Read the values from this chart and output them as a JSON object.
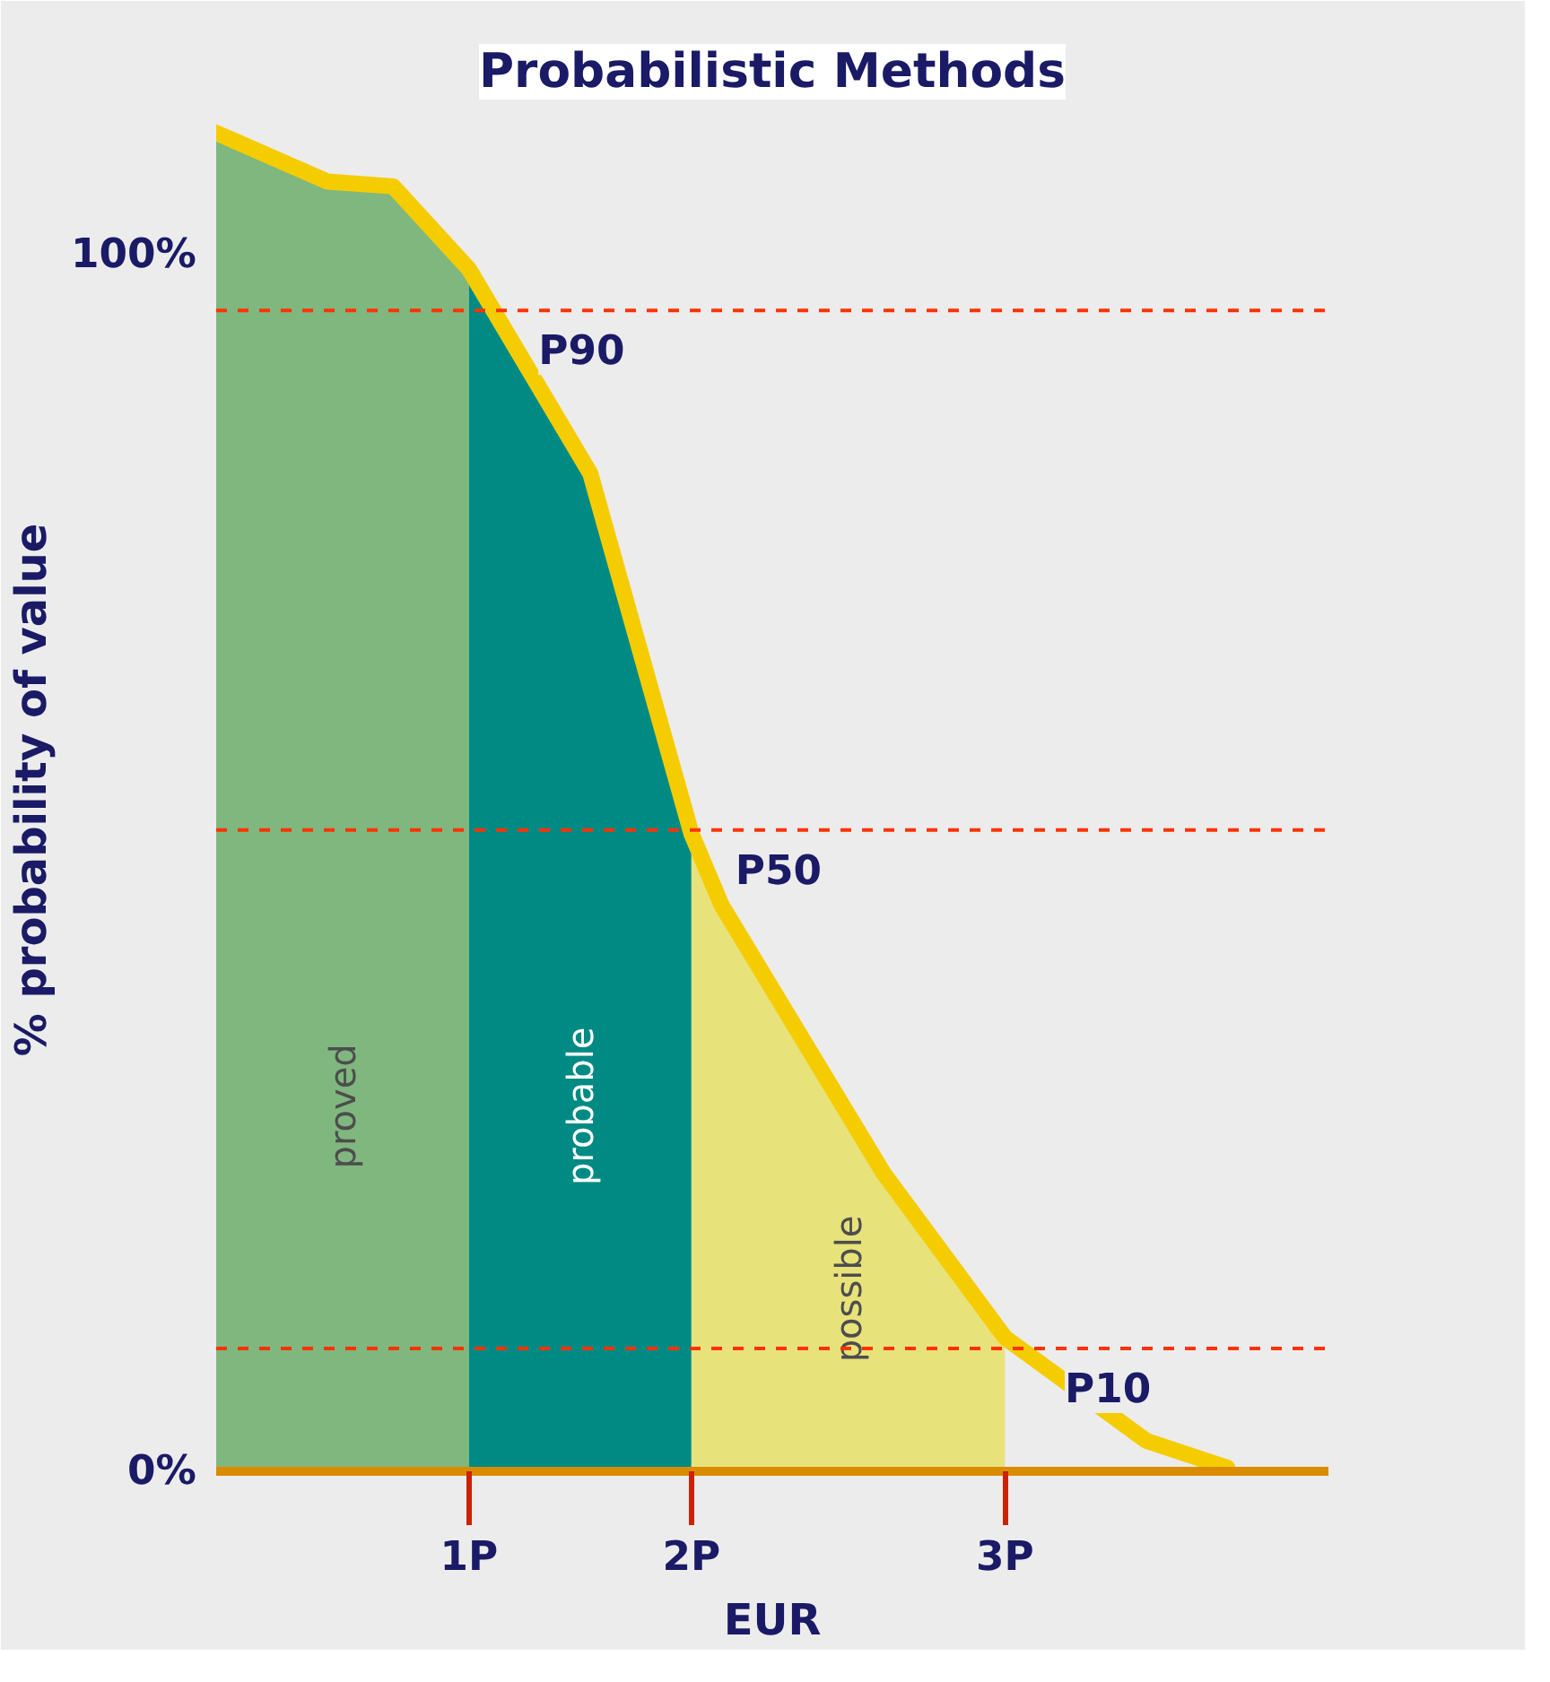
{
  "chart_data": {
    "type": "area",
    "title": "Probabilistic Methods",
    "ylabel": "% probability of value",
    "xlabel": "EUR",
    "series": [
      {
        "name": "proved",
        "color": "#7fb77e",
        "x": [
          0,
          0.44,
          0.7,
          1.0
        ],
        "values": [
          110,
          106,
          105.6,
          98.8
        ]
      },
      {
        "name": "probable",
        "color": "#008a84",
        "x": [
          1.0,
          1.48,
          1.88
        ],
        "values": [
          98.8,
          82,
          52.4
        ]
      },
      {
        "name": "possible",
        "color": "#e8e27a",
        "x": [
          1.88,
          2.0,
          2.64,
          3.12
        ],
        "values": [
          52.4,
          46.5,
          24.5,
          11
        ]
      },
      {
        "type": "line",
        "color": "#f5cc00",
        "x": [
          0,
          0.44,
          0.7,
          1.0,
          1.48,
          1.88,
          2.0,
          2.64,
          3.12,
          3.68,
          4.0
        ],
        "values": [
          110,
          106,
          105.6,
          98.8,
          82,
          52.4,
          46.5,
          24.5,
          11,
          2.5,
          0.3
        ]
      }
    ],
    "ref_lines": [
      {
        "axis": "y",
        "value": 95.4,
        "label": "P90",
        "color": "#ff3300",
        "line_style": "dashed"
      },
      {
        "axis": "y",
        "value": 52.7,
        "label": "P50",
        "color": "#ff3300",
        "line_style": "dashed"
      },
      {
        "axis": "y",
        "value": 10.1,
        "label": "P10",
        "color": "#ff3300",
        "line_style": "dashed"
      }
    ],
    "xlim": [
      0,
      4.4
    ],
    "ylim": [
      0,
      112
    ],
    "xticks": [
      {
        "value": 1.0,
        "label": "1P"
      },
      {
        "value": 1.88,
        "label": "2P"
      },
      {
        "value": 3.12,
        "label": "3P"
      }
    ],
    "yticks": [
      {
        "value": 0,
        "label": "0%"
      },
      {
        "value": 100,
        "label": "100%"
      }
    ],
    "grid": false
  }
}
